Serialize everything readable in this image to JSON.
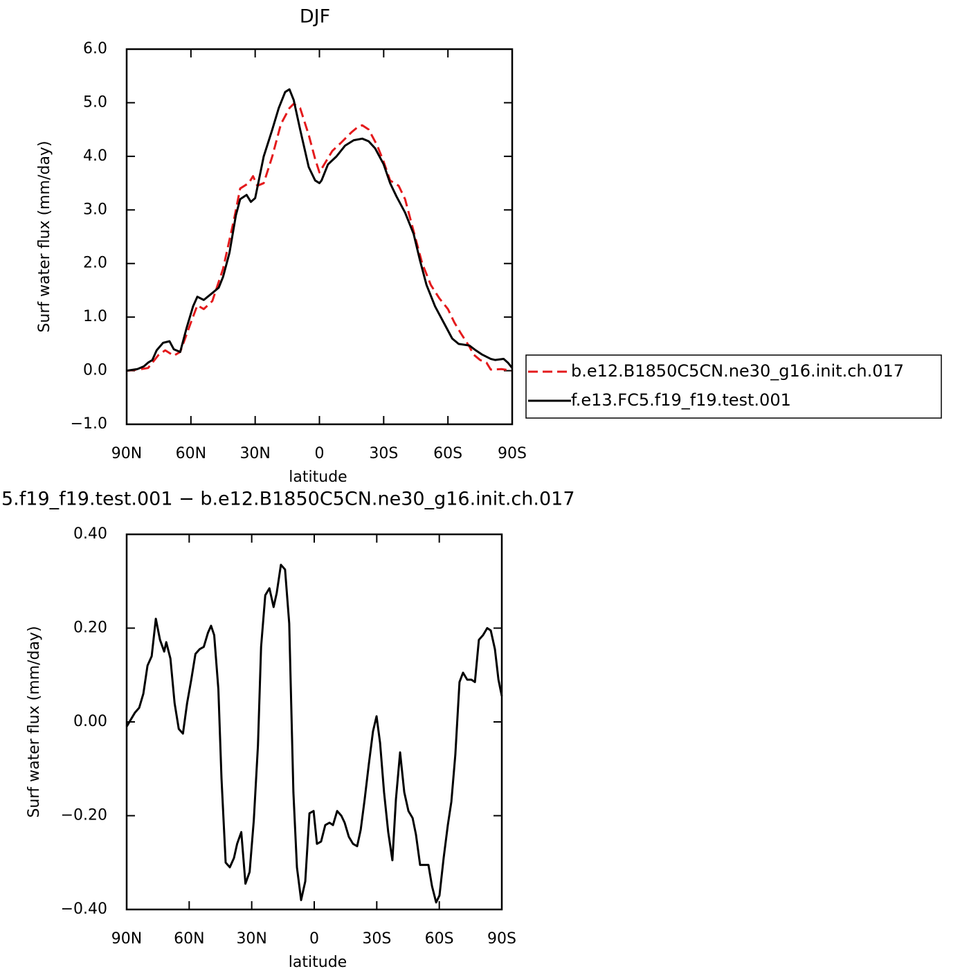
{
  "chart_data": [
    {
      "type": "line",
      "title": "DJF",
      "xlabel": "latitude",
      "ylabel": "Surf water flux (mm/day)",
      "xlim": [
        90,
        -90
      ],
      "xticks": [
        {
          "value": 90,
          "label": "90N"
        },
        {
          "value": 60,
          "label": "60N"
        },
        {
          "value": 30,
          "label": "30N"
        },
        0,
        {
          "value": -30,
          "label": "30S"
        },
        {
          "value": -60,
          "label": "60S"
        },
        {
          "value": -90,
          "label": "90S"
        }
      ],
      "ylim": [
        -1,
        6
      ],
      "yticks": [
        {
          "value": -1,
          "label": "−1.0"
        },
        {
          "value": 0,
          "label": "0.0"
        },
        {
          "value": 1,
          "label": "1.0"
        },
        {
          "value": 2,
          "label": "2.0"
        },
        {
          "value": 3,
          "label": "3.0"
        },
        {
          "value": 4,
          "label": "4.0"
        },
        {
          "value": 5,
          "label": "5.0"
        },
        {
          "value": 6,
          "label": "6.0"
        }
      ],
      "legend": "right",
      "series": [
        {
          "name": "b.e12.B1850C5CN.ne30_g16.init.ch.017",
          "color": "#e41a1c",
          "line_style": "dashed",
          "x": [
            90,
            85,
            80,
            75,
            72,
            68,
            65,
            60,
            57,
            54,
            50,
            45,
            40,
            37,
            33,
            31,
            29,
            26,
            22,
            18,
            14,
            12,
            9,
            5,
            2,
            0,
            -3,
            -6,
            -10,
            -15,
            -18,
            -20,
            -23,
            -27,
            -30,
            -33,
            -37,
            -40,
            -44,
            -48,
            -52,
            -56,
            -60,
            -63,
            -66,
            -70,
            -72,
            -75,
            -78,
            -80,
            -85,
            -90
          ],
          "values": [
            0,
            0.02,
            0.05,
            0.3,
            0.38,
            0.28,
            0.35,
            0.9,
            1.22,
            1.15,
            1.3,
            1.9,
            2.8,
            3.4,
            3.5,
            3.63,
            3.45,
            3.5,
            4.0,
            4.6,
            4.9,
            4.98,
            4.9,
            4.4,
            3.95,
            3.7,
            3.9,
            4.1,
            4.25,
            4.45,
            4.55,
            4.58,
            4.5,
            4.2,
            3.9,
            3.55,
            3.45,
            3.2,
            2.6,
            2.0,
            1.6,
            1.35,
            1.15,
            0.9,
            0.7,
            0.45,
            0.3,
            0.2,
            0.15,
            0.02,
            0.03,
            0
          ]
        },
        {
          "name": "f.e13.FC5.f19_f19.test.001",
          "color": "#000000",
          "line_style": "solid",
          "x": [
            90,
            85,
            82,
            80,
            78,
            76,
            73,
            70,
            68,
            65,
            62,
            59,
            57,
            54,
            50,
            47,
            45,
            42,
            39,
            37,
            34,
            32,
            30,
            26,
            22,
            19,
            16,
            14,
            12,
            9,
            5,
            2,
            0,
            -1,
            -4,
            -8,
            -12,
            -16,
            -20,
            -23,
            -26,
            -30,
            -33,
            -36,
            -40,
            -44,
            -47,
            -50,
            -54,
            -58,
            -62,
            -65,
            -70,
            -73,
            -76,
            -80,
            -82,
            -86,
            -88,
            -90
          ],
          "values": [
            0,
            0.03,
            0.08,
            0.15,
            0.2,
            0.38,
            0.52,
            0.55,
            0.4,
            0.35,
            0.8,
            1.2,
            1.38,
            1.32,
            1.45,
            1.55,
            1.75,
            2.2,
            2.9,
            3.2,
            3.28,
            3.15,
            3.22,
            4.0,
            4.5,
            4.9,
            5.2,
            5.25,
            5.05,
            4.5,
            3.8,
            3.55,
            3.5,
            3.55,
            3.85,
            4.0,
            4.2,
            4.3,
            4.33,
            4.28,
            4.15,
            3.85,
            3.5,
            3.25,
            2.95,
            2.55,
            2.05,
            1.6,
            1.2,
            0.9,
            0.6,
            0.5,
            0.47,
            0.38,
            0.3,
            0.22,
            0.2,
            0.22,
            0.15,
            0.05
          ]
        }
      ]
    },
    {
      "type": "line",
      "title": "5.f19_f19.test.001 − b.e12.B1850C5CN.ne30_g16.init.ch.017",
      "xlabel": "latitude",
      "ylabel": "Surf water flux (mm/day)",
      "xlim": [
        90,
        -90
      ],
      "xticks": [
        {
          "value": 90,
          "label": "90N"
        },
        {
          "value": 60,
          "label": "60N"
        },
        {
          "value": 30,
          "label": "30N"
        },
        0,
        {
          "value": -30,
          "label": "30S"
        },
        {
          "value": -60,
          "label": "60S"
        },
        {
          "value": -90,
          "label": "90S"
        }
      ],
      "ylim": [
        -0.4,
        0.4
      ],
      "yticks": [
        {
          "value": -0.4,
          "label": "−0.40"
        },
        {
          "value": -0.2,
          "label": "−0.20"
        },
        {
          "value": 0,
          "label": "0.00"
        },
        {
          "value": 0.2,
          "label": "0.20"
        },
        {
          "value": 0.4,
          "label": "0.40"
        }
      ],
      "series": [
        {
          "color": "#000000",
          "line_style": "solid",
          "x": [
            90,
            86,
            84,
            82,
            80,
            78,
            76,
            74,
            72,
            71,
            69,
            67,
            65,
            63,
            61,
            59,
            57,
            55,
            53,
            51,
            49.5,
            48,
            46,
            44.5,
            42.5,
            40.5,
            38.5,
            37,
            35,
            33,
            31,
            29,
            27,
            25.5,
            23.5,
            21.5,
            19.5,
            18,
            16,
            14,
            12,
            10,
            8.3,
            6.3,
            4.3,
            2.3,
            0.3,
            -1.3,
            -3.3,
            -5.3,
            -7.3,
            -9,
            -11,
            -13,
            -14.6,
            -16.6,
            -18.6,
            -20.6,
            -22.3,
            -24.2,
            -26.2,
            -28.2,
            -29.9,
            -31.6,
            -33.5,
            -35.5,
            -37.5,
            -39.2,
            -41.2,
            -43.2,
            -45.2,
            -47.2,
            -48.8,
            -50.8,
            -52.8,
            -54.8,
            -56.5,
            -58.5,
            -60.1,
            -62.1,
            -64.1,
            -65.8,
            -67.7,
            -69.7,
            -71.4,
            -73.4,
            -75.4,
            -77.1,
            -79,
            -81,
            -83,
            -84.7,
            -86.7,
            -88.4,
            -90
          ],
          "values": [
            -0.01,
            0.02,
            0.03,
            0.06,
            0.12,
            0.14,
            0.22,
            0.175,
            0.15,
            0.17,
            0.135,
            0.04,
            -0.015,
            -0.025,
            0.04,
            0.09,
            0.145,
            0.155,
            0.16,
            0.19,
            0.205,
            0.185,
            0.07,
            -0.12,
            -0.3,
            -0.31,
            -0.29,
            -0.26,
            -0.235,
            -0.345,
            -0.32,
            -0.21,
            -0.05,
            0.16,
            0.27,
            0.285,
            0.245,
            0.275,
            0.335,
            0.325,
            0.21,
            -0.15,
            -0.31,
            -0.38,
            -0.34,
            -0.195,
            -0.19,
            -0.26,
            -0.255,
            -0.22,
            -0.215,
            -0.22,
            -0.19,
            -0.2,
            -0.215,
            -0.245,
            -0.26,
            -0.265,
            -0.23,
            -0.165,
            -0.09,
            -0.02,
            0.012,
            -0.045,
            -0.15,
            -0.235,
            -0.295,
            -0.165,
            -0.065,
            -0.15,
            -0.19,
            -0.205,
            -0.24,
            -0.305,
            -0.305,
            -0.305,
            -0.35,
            -0.385,
            -0.37,
            -0.29,
            -0.22,
            -0.17,
            -0.07,
            0.085,
            0.105,
            0.09,
            0.09,
            0.085,
            0.175,
            0.185,
            0.2,
            0.195,
            0.155,
            0.09,
            0.055
          ]
        }
      ]
    }
  ]
}
